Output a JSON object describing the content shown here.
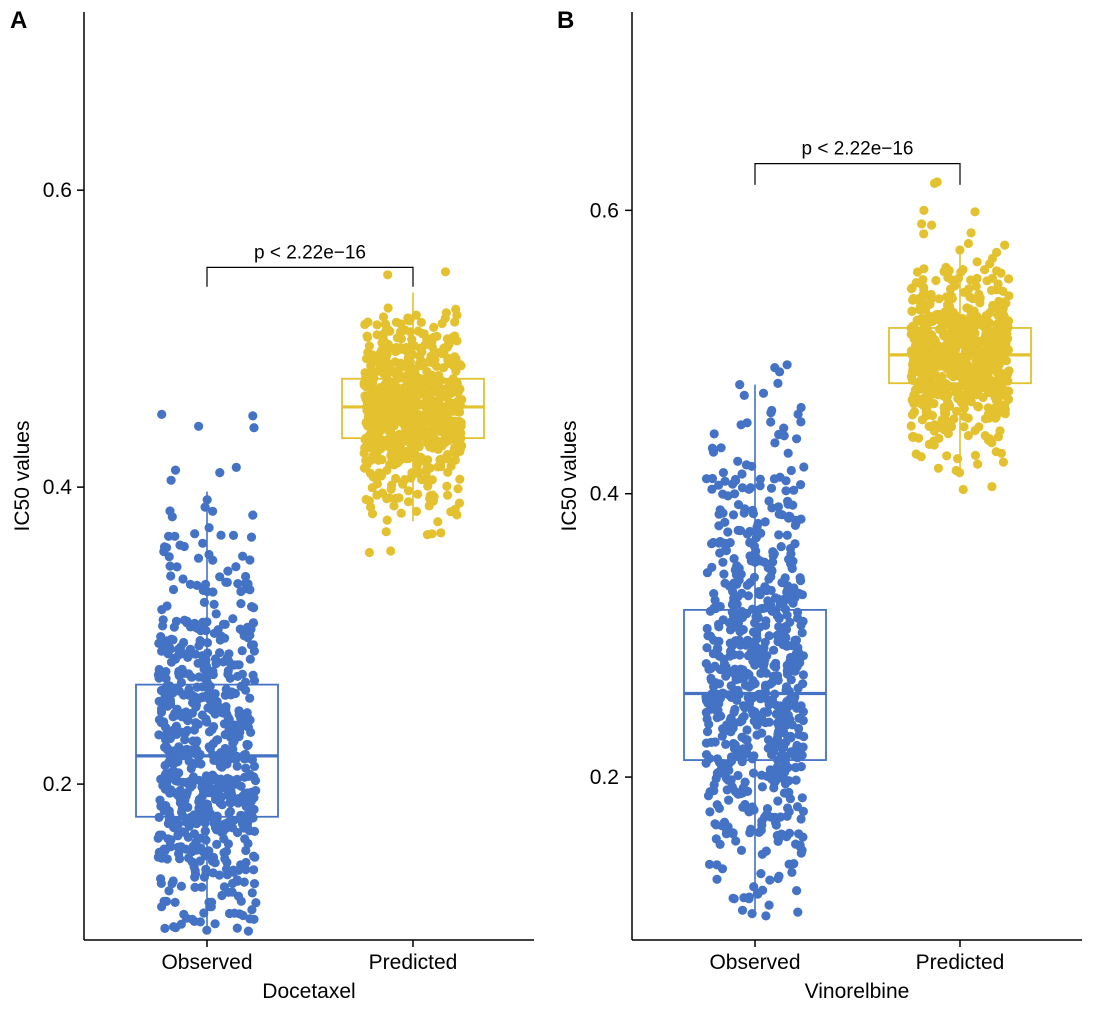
{
  "chart_data": [
    {
      "panel_label": "A",
      "type": "boxplot-jitter",
      "xlabel": "Docetaxel",
      "ylabel": "IC50 values",
      "categories": [
        "Observed",
        "Predicted"
      ],
      "ylim": [
        0.095,
        0.72
      ],
      "yticks": [
        0.2,
        0.4,
        0.6
      ],
      "ytick_labels": [
        "0.2",
        "0.4",
        "0.6"
      ],
      "annotation": {
        "text": "p < 2.22e−16",
        "bracket_y": 0.548,
        "tick_drop": 0.013
      },
      "series": [
        {
          "name": "Observed",
          "color": "#4472c4",
          "box": {
            "q1": 0.178,
            "median": 0.219,
            "q3": 0.267,
            "whisker_low": 0.103,
            "whisker_high": 0.397
          },
          "points": {
            "n": 700,
            "min": 0.101,
            "max": 0.449,
            "extremes": [
              0.449,
              0.448,
              0.441,
              0.44,
              0.101,
              0.103
            ]
          }
        },
        {
          "name": "Predicted",
          "color": "#e3c12f",
          "box": {
            "q1": 0.433,
            "median": 0.454,
            "q3": 0.473,
            "whisker_low": 0.377,
            "whisker_high": 0.531
          },
          "points": {
            "n": 700,
            "min": 0.356,
            "max": 0.545,
            "extremes": [
              0.545,
              0.543,
              0.356,
              0.357,
              0.368,
              0.37
            ]
          }
        }
      ]
    },
    {
      "panel_label": "B",
      "type": "boxplot-jitter",
      "xlabel": "Vinorelbine",
      "ylabel": "IC50 values",
      "categories": [
        "Observed",
        "Predicted"
      ],
      "ylim": [
        0.085,
        0.74
      ],
      "yticks": [
        0.2,
        0.4,
        0.6
      ],
      "ytick_labels": [
        "0.2",
        "0.4",
        "0.6"
      ],
      "annotation": {
        "text": "p < 2.22e−16",
        "bracket_y": 0.633,
        "tick_drop": 0.015
      },
      "series": [
        {
          "name": "Observed",
          "color": "#4472c4",
          "box": {
            "q1": 0.212,
            "median": 0.259,
            "q3": 0.318,
            "whisker_low": 0.102,
            "whisker_high": 0.477
          },
          "points": {
            "n": 700,
            "min": 0.102,
            "max": 0.491,
            "extremes": [
              0.491,
              0.489,
              0.486,
              0.477,
              0.102,
              0.13
            ]
          }
        },
        {
          "name": "Predicted",
          "color": "#e3c12f",
          "box": {
            "q1": 0.478,
            "median": 0.498,
            "q3": 0.517,
            "whisker_low": 0.418,
            "whisker_high": 0.573
          },
          "points": {
            "n": 700,
            "min": 0.403,
            "max": 0.62,
            "extremes": [
              0.62,
              0.619,
              0.6,
              0.599,
              0.403,
              0.405
            ]
          }
        }
      ]
    }
  ]
}
